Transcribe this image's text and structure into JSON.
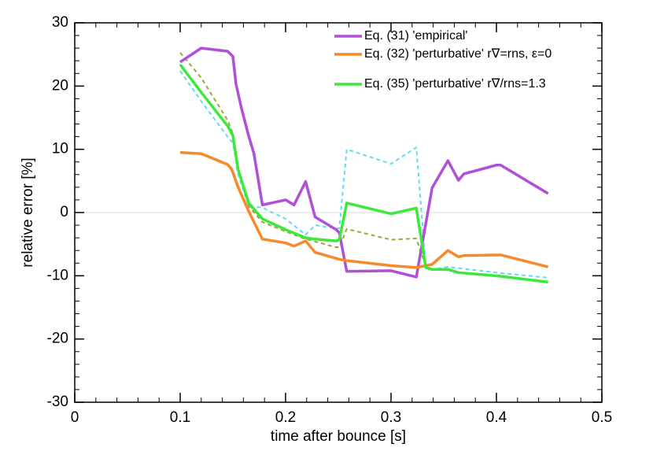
{
  "chart_data": {
    "type": "line",
    "xlabel": "time after bounce [s]",
    "ylabel": "relative error [%]",
    "xlim": [
      0,
      0.5
    ],
    "xticks": [
      0,
      0.1,
      0.2,
      0.3,
      0.4,
      0.5
    ],
    "ylim": [
      -30,
      30
    ],
    "yticks": [
      -30,
      -20,
      -10,
      0,
      10,
      20,
      30
    ],
    "zero_line": true,
    "legend": "upper right",
    "series": [
      {
        "color": "#9aa83a",
        "dash": true,
        "x": [
          0.1,
          0.12,
          0.145,
          0.15,
          0.155,
          0.165,
          0.178,
          0.2,
          0.219,
          0.228,
          0.248,
          0.251,
          0.258,
          0.3,
          0.324,
          0.333,
          0.339
        ],
        "values": [
          25.3,
          21.3,
          14.6,
          12.5,
          6.8,
          1.0,
          -1.5,
          -3.0,
          -4.2,
          -4.6,
          -5.5,
          -5.5,
          -2.6,
          -4.3,
          -4.1,
          -8.5,
          -9.0
        ]
      },
      {
        "color": "#5fdcf2",
        "dash": true,
        "x": [
          0.1,
          0.12,
          0.145,
          0.15,
          0.155,
          0.165,
          0.178,
          0.2,
          0.219,
          0.228,
          0.248,
          0.251,
          0.258,
          0.3,
          0.324,
          0.333,
          0.339,
          0.354,
          0.4,
          0.449
        ],
        "values": [
          22.4,
          17.6,
          12.0,
          11.0,
          6.0,
          1.0,
          0.8,
          -1.0,
          -3.5,
          -2.0,
          -2.5,
          -2.5,
          10.0,
          7.7,
          10.3,
          -8.5,
          -9.0,
          -8.6,
          -9.5,
          -10.3
        ]
      },
      {
        "name": "Eq. (31) 'empirical'",
        "color": "#b050d8",
        "x": [
          0.1,
          0.12,
          0.145,
          0.15,
          0.153,
          0.158,
          0.165,
          0.17,
          0.178,
          0.2,
          0.208,
          0.219,
          0.228,
          0.248,
          0.251,
          0.258,
          0.3,
          0.324,
          0.339,
          0.354,
          0.364,
          0.369,
          0.4,
          0.404,
          0.449
        ],
        "values": [
          23.8,
          26.0,
          25.5,
          24.7,
          20.3,
          16.6,
          12.1,
          9.3,
          1.2,
          2.0,
          1.2,
          4.9,
          -0.7,
          -2.7,
          -3.2,
          -9.3,
          -9.2,
          -10.2,
          3.9,
          8.2,
          5.1,
          6.1,
          7.5,
          7.5,
          3.0
        ]
      },
      {
        "name": "Eq. (32) 'perturbative' r∇=rns, ε=0",
        "color": "#f68a2a",
        "x": [
          0.1,
          0.12,
          0.145,
          0.149,
          0.155,
          0.165,
          0.178,
          0.2,
          0.208,
          0.219,
          0.228,
          0.251,
          0.258,
          0.3,
          0.324,
          0.339,
          0.354,
          0.364,
          0.369,
          0.404,
          0.449
        ],
        "values": [
          9.5,
          9.3,
          7.6,
          6.8,
          4.0,
          0.2,
          -4.2,
          -4.8,
          -5.3,
          -4.5,
          -6.3,
          -7.4,
          -7.6,
          -8.4,
          -8.7,
          -8.2,
          -6.0,
          -7.0,
          -6.8,
          -6.7,
          -8.6
        ]
      },
      {
        "name": "Eq. (35) 'perturbative' r∇/rns=1.3",
        "color": "#3ee83a",
        "x": [
          0.1,
          0.12,
          0.145,
          0.15,
          0.155,
          0.165,
          0.178,
          0.2,
          0.219,
          0.228,
          0.248,
          0.251,
          0.258,
          0.3,
          0.324,
          0.333,
          0.339,
          0.354,
          0.364,
          0.4,
          0.449
        ],
        "values": [
          23.4,
          19.0,
          13.7,
          12.2,
          6.8,
          1.5,
          -1.0,
          -2.7,
          -4.0,
          -4.2,
          -4.5,
          -4.3,
          1.5,
          -0.2,
          0.7,
          -8.7,
          -9.0,
          -9.0,
          -9.5,
          -10.0,
          -11.0
        ]
      }
    ]
  }
}
